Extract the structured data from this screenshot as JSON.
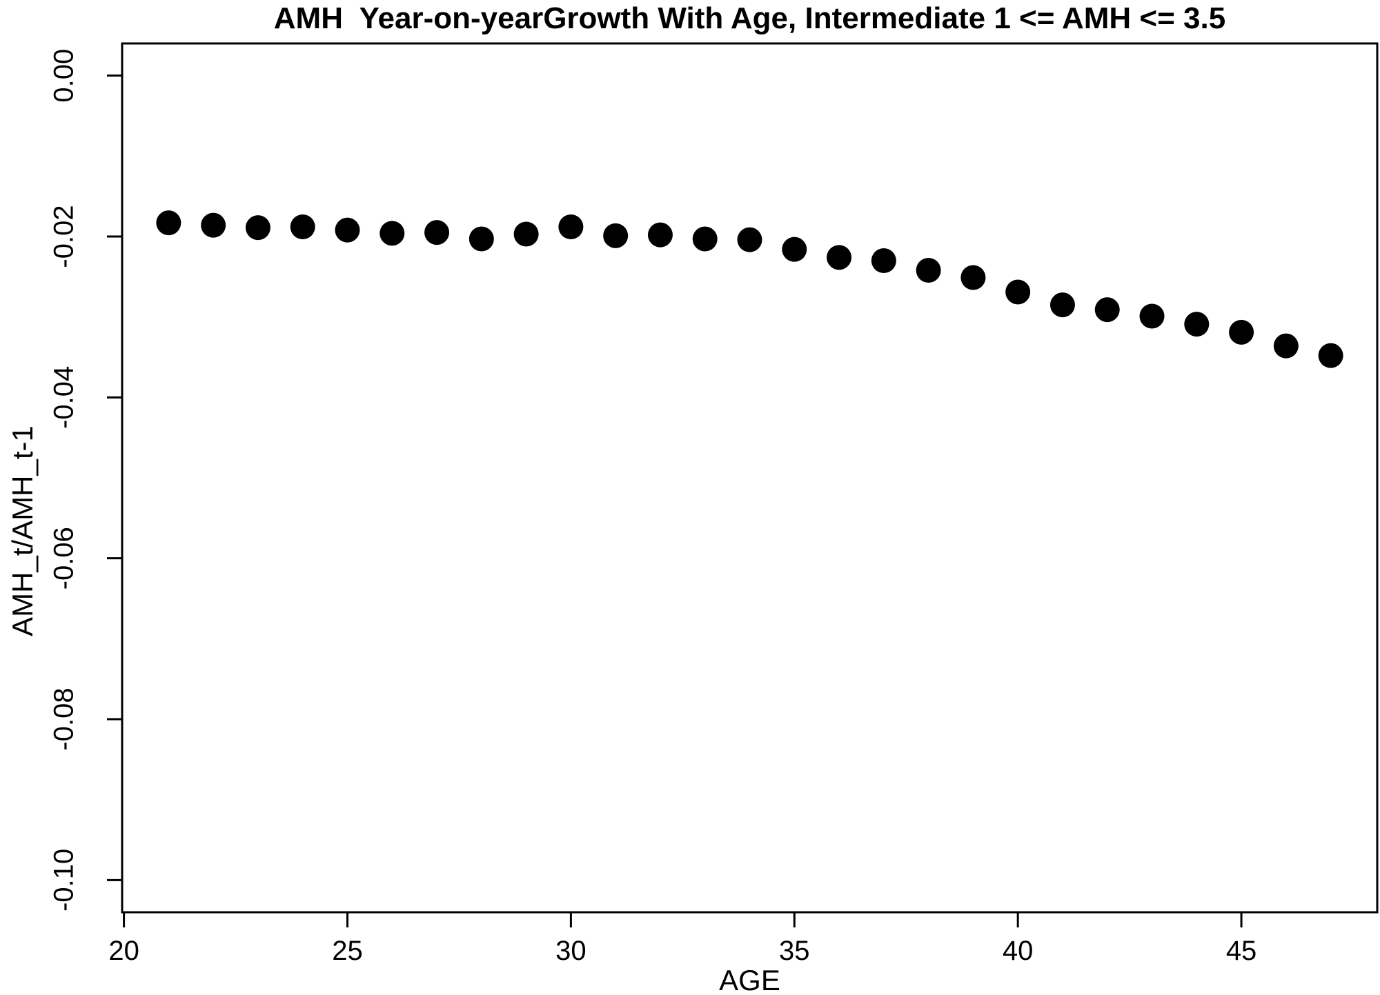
{
  "figure": {
    "title": "AMH  Year-on-yearGrowth With Age, Intermediate 1 <= AMH <= 3.5",
    "x_axis_title": "AGE",
    "y_axis_title": "AMH_t/AMH_t-1",
    "background_color": "#ffffff",
    "foreground_color": "#000000"
  },
  "chart_data": {
    "type": "scatter",
    "title": "AMH  Year-on-yearGrowth With Age, Intermediate 1 <= AMH <= 3.5",
    "xlabel": "AGE",
    "ylabel": "AMH_t/AMH_t-1",
    "marker": "filled-circle",
    "point_color": "#000000",
    "grid": false,
    "legend": "none",
    "xlim": [
      19.96,
      48.04
    ],
    "ylim": [
      -0.104,
      0.004
    ],
    "x_ticks": [
      20,
      25,
      30,
      35,
      40,
      45
    ],
    "x_tick_labels": [
      "20",
      "25",
      "30",
      "35",
      "40",
      "45"
    ],
    "y_ticks": [
      0.0,
      -0.02,
      -0.04,
      -0.06,
      -0.08,
      -0.1
    ],
    "y_tick_labels": [
      "0.00",
      "-0.02",
      "-0.04",
      "-0.06",
      "-0.08",
      "-0.10"
    ],
    "x": [
      21,
      22,
      23,
      24,
      25,
      26,
      27,
      28,
      29,
      30,
      31,
      32,
      33,
      34,
      35,
      36,
      37,
      38,
      39,
      40,
      41,
      42,
      43,
      44,
      45,
      46,
      47
    ],
    "y": [
      -0.0183,
      -0.0186,
      -0.0189,
      -0.0188,
      -0.0192,
      -0.0196,
      -0.0195,
      -0.0203,
      -0.0197,
      -0.0188,
      -0.0199,
      -0.0198,
      -0.0203,
      -0.0204,
      -0.0216,
      -0.0226,
      -0.023,
      -0.0242,
      -0.0251,
      -0.0269,
      -0.0285,
      -0.0291,
      -0.0299,
      -0.0309,
      -0.0319,
      -0.0336,
      -0.0348
    ]
  }
}
